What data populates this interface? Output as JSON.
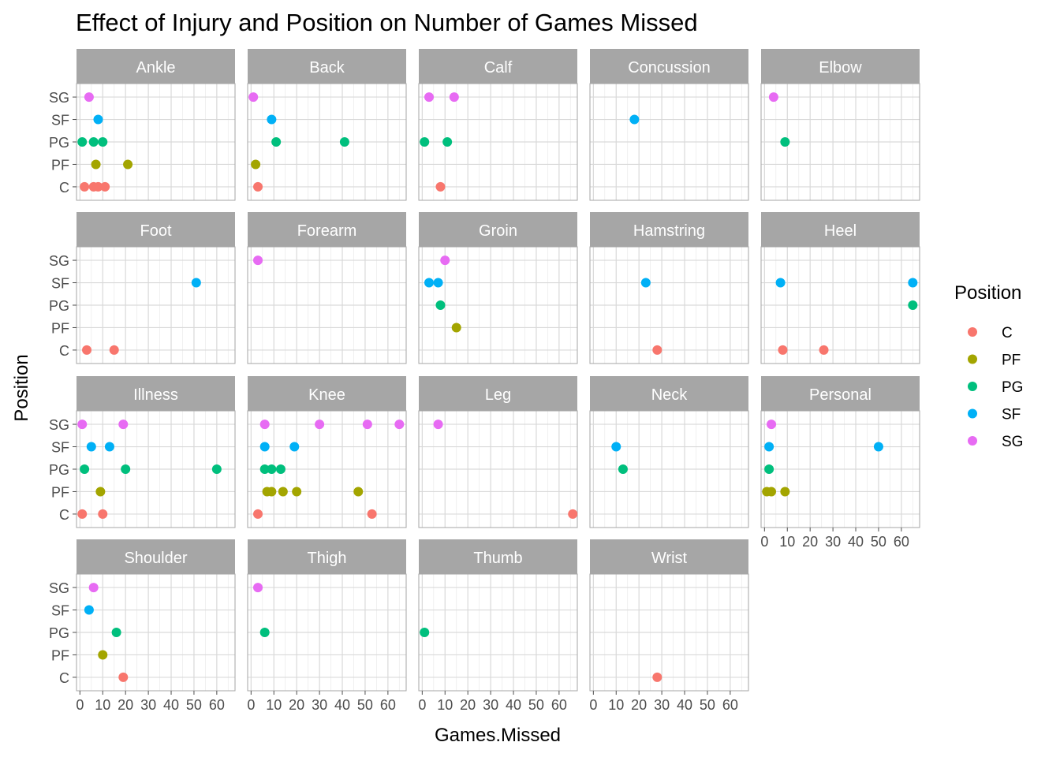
{
  "chart_data": {
    "type": "scatter",
    "title": "Effect of Injury and Position on Number of Games Missed",
    "xlabel": "Games.Missed",
    "ylabel": "Position",
    "xlim": [
      -1.5,
      68
    ],
    "x_ticks": [
      0,
      10,
      20,
      30,
      40,
      50,
      60
    ],
    "y_categories": [
      "C",
      "PF",
      "PG",
      "SF",
      "SG"
    ],
    "grid": true,
    "legend": {
      "title": "Position",
      "placement": "right",
      "items": [
        {
          "label": "C",
          "color": "#F8766D"
        },
        {
          "label": "PF",
          "color": "#A3A500"
        },
        {
          "label": "PG",
          "color": "#00BF7D"
        },
        {
          "label": "SF",
          "color": "#00B0F6"
        },
        {
          "label": "SG",
          "color": "#E76BF3"
        }
      ]
    },
    "facets": [
      {
        "label": "Ankle",
        "points": [
          {
            "x": 4,
            "y": "SG"
          },
          {
            "x": 8,
            "y": "SF"
          },
          {
            "x": 1,
            "y": "PG"
          },
          {
            "x": 6,
            "y": "PG"
          },
          {
            "x": 10,
            "y": "PG"
          },
          {
            "x": 7,
            "y": "PF"
          },
          {
            "x": 21,
            "y": "PF"
          },
          {
            "x": 2,
            "y": "C"
          },
          {
            "x": 6,
            "y": "C"
          },
          {
            "x": 8,
            "y": "C"
          },
          {
            "x": 11,
            "y": "C"
          }
        ]
      },
      {
        "label": "Back",
        "points": [
          {
            "x": 1,
            "y": "SG"
          },
          {
            "x": 9,
            "y": "SF"
          },
          {
            "x": 11,
            "y": "PG"
          },
          {
            "x": 41,
            "y": "PG"
          },
          {
            "x": 2,
            "y": "PF"
          },
          {
            "x": 3,
            "y": "C"
          }
        ]
      },
      {
        "label": "Calf",
        "points": [
          {
            "x": 3,
            "y": "SG"
          },
          {
            "x": 14,
            "y": "SG"
          },
          {
            "x": 1,
            "y": "PG"
          },
          {
            "x": 11,
            "y": "PG"
          },
          {
            "x": 8,
            "y": "C"
          }
        ]
      },
      {
        "label": "Concussion",
        "points": [
          {
            "x": 18,
            "y": "SF"
          }
        ]
      },
      {
        "label": "Elbow",
        "points": [
          {
            "x": 4,
            "y": "SG"
          },
          {
            "x": 9,
            "y": "PG"
          }
        ]
      },
      {
        "label": "Foot",
        "points": [
          {
            "x": 51,
            "y": "SF"
          },
          {
            "x": 3,
            "y": "C"
          },
          {
            "x": 15,
            "y": "C"
          }
        ]
      },
      {
        "label": "Forearm",
        "points": [
          {
            "x": 3,
            "y": "SG"
          }
        ]
      },
      {
        "label": "Groin",
        "points": [
          {
            "x": 10,
            "y": "SG"
          },
          {
            "x": 3,
            "y": "SF"
          },
          {
            "x": 7,
            "y": "SF"
          },
          {
            "x": 8,
            "y": "PG"
          },
          {
            "x": 15,
            "y": "PF"
          }
        ]
      },
      {
        "label": "Hamstring",
        "points": [
          {
            "x": 23,
            "y": "SF"
          },
          {
            "x": 28,
            "y": "C"
          }
        ]
      },
      {
        "label": "Heel",
        "points": [
          {
            "x": 7,
            "y": "SF"
          },
          {
            "x": 65,
            "y": "SF"
          },
          {
            "x": 65,
            "y": "PG"
          },
          {
            "x": 8,
            "y": "C"
          },
          {
            "x": 26,
            "y": "C"
          }
        ]
      },
      {
        "label": "Illness",
        "points": [
          {
            "x": 1,
            "y": "SG"
          },
          {
            "x": 19,
            "y": "SG"
          },
          {
            "x": 5,
            "y": "SF"
          },
          {
            "x": 13,
            "y": "SF"
          },
          {
            "x": 2,
            "y": "PG"
          },
          {
            "x": 20,
            "y": "PG"
          },
          {
            "x": 60,
            "y": "PG"
          },
          {
            "x": 9,
            "y": "PF"
          },
          {
            "x": 1,
            "y": "C"
          },
          {
            "x": 10,
            "y": "C"
          }
        ]
      },
      {
        "label": "Knee",
        "points": [
          {
            "x": 6,
            "y": "SG"
          },
          {
            "x": 30,
            "y": "SG"
          },
          {
            "x": 51,
            "y": "SG"
          },
          {
            "x": 65,
            "y": "SG"
          },
          {
            "x": 6,
            "y": "SF"
          },
          {
            "x": 19,
            "y": "SF"
          },
          {
            "x": 6,
            "y": "PG"
          },
          {
            "x": 9,
            "y": "PG"
          },
          {
            "x": 13,
            "y": "PG"
          },
          {
            "x": 7,
            "y": "PF"
          },
          {
            "x": 9,
            "y": "PF"
          },
          {
            "x": 14,
            "y": "PF"
          },
          {
            "x": 20,
            "y": "PF"
          },
          {
            "x": 47,
            "y": "PF"
          },
          {
            "x": 3,
            "y": "C"
          },
          {
            "x": 53,
            "y": "C"
          }
        ]
      },
      {
        "label": "Leg",
        "points": [
          {
            "x": 7,
            "y": "SG"
          },
          {
            "x": 66,
            "y": "C"
          }
        ]
      },
      {
        "label": "Neck",
        "points": [
          {
            "x": 10,
            "y": "SF"
          },
          {
            "x": 13,
            "y": "PG"
          }
        ]
      },
      {
        "label": "Personal",
        "points": [
          {
            "x": 3,
            "y": "SG"
          },
          {
            "x": 2,
            "y": "SF"
          },
          {
            "x": 50,
            "y": "SF"
          },
          {
            "x": 2,
            "y": "PG"
          },
          {
            "x": 1,
            "y": "PF"
          },
          {
            "x": 3,
            "y": "PF"
          },
          {
            "x": 9,
            "y": "PF"
          }
        ]
      },
      {
        "label": "Shoulder",
        "points": [
          {
            "x": 6,
            "y": "SG"
          },
          {
            "x": 4,
            "y": "SF"
          },
          {
            "x": 16,
            "y": "PG"
          },
          {
            "x": 10,
            "y": "PF"
          },
          {
            "x": 19,
            "y": "C"
          }
        ]
      },
      {
        "label": "Thigh",
        "points": [
          {
            "x": 3,
            "y": "SG"
          },
          {
            "x": 6,
            "y": "PG"
          }
        ]
      },
      {
        "label": "Thumb",
        "points": [
          {
            "x": 1,
            "y": "PG"
          }
        ]
      },
      {
        "label": "Wrist",
        "points": [
          {
            "x": 28,
            "y": "C"
          }
        ]
      }
    ]
  }
}
